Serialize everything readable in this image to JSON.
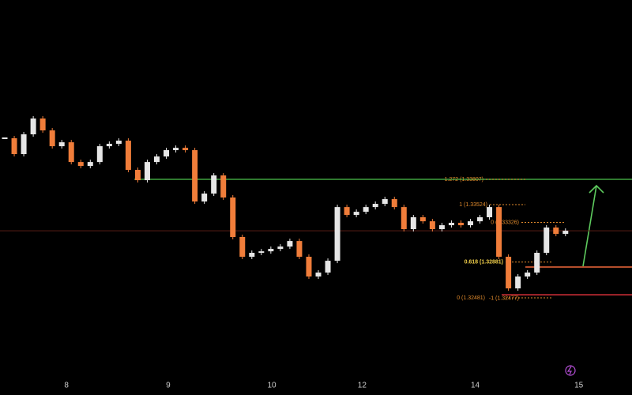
{
  "chart_data": {
    "type": "candlestick",
    "up_color": "#e6e6e6",
    "down_color": "#f07d3a",
    "values": [
      1.34267,
      1.3409,
      1.34311,
      1.34488,
      1.34355,
      1.34178,
      1.34222,
      1.34001,
      1.33957,
      1.34001,
      1.34178,
      1.34205,
      1.3424,
      1.33913,
      1.33798,
      1.34001,
      1.34063,
      1.34134,
      1.3416,
      1.34134,
      1.33559,
      1.33648,
      1.33851,
      1.33604,
      1.33162,
      1.32941,
      1.32985,
      1.33002,
      1.33029,
      1.33055,
      1.33117,
      1.32941,
      1.3272,
      1.32764,
      1.32896,
      1.33497,
      1.33409,
      1.33444,
      1.33497,
      1.33533,
      1.33586,
      1.33497,
      1.3325,
      1.33383,
      1.33338,
      1.3325,
      1.33294,
      1.33321,
      1.33294,
      1.33338,
      1.33383,
      1.33497,
      1.32941,
      1.32587,
      1.3272,
      1.32764,
      1.32985,
      1.33268,
      1.33197,
      1.33232
    ],
    "xlim": [
      -0.5,
      66
    ],
    "xticks": [
      {
        "value": 6.5,
        "label": "8"
      },
      {
        "value": 17.2,
        "label": "9"
      },
      {
        "value": 28.1,
        "label": "10"
      },
      {
        "value": 37.6,
        "label": "12"
      },
      {
        "value": 49.5,
        "label": "14"
      },
      {
        "value": 60.4,
        "label": "15"
      }
    ],
    "ylim": [
      1.31394,
      1.35814
    ],
    "levels": [
      {
        "value": 1.33807,
        "color": "#3fa33f"
      },
      {
        "value": 1.32826,
        "color": "#f0683a"
      },
      {
        "value": 1.32516,
        "color": "#d9303a"
      },
      {
        "value": 1.33232,
        "color": "#5a1e16"
      }
    ],
    "fib": [
      {
        "label": "1.272 (1.33807)",
        "value": 1.33807
      },
      {
        "label": "1 (1.33524)",
        "value": 1.33524
      },
      {
        "label": "0 (1.33326)",
        "value": 1.33326
      },
      {
        "label": "0.618 (1.32881)",
        "value": 1.32881
      },
      {
        "label": "0 (1.32481)",
        "value": 1.32481
      },
      {
        "label": "-1 (1.32477)",
        "value": 1.32477
      }
    ]
  }
}
